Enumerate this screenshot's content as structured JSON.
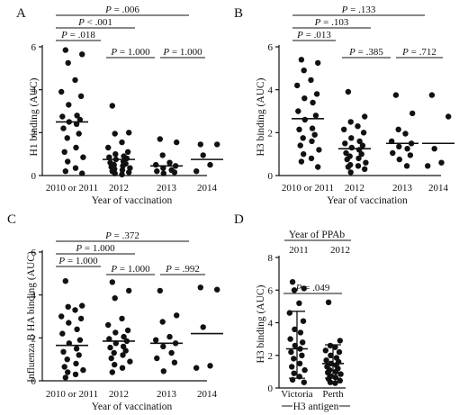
{
  "chart_data": [
    {
      "panel": "A",
      "type": "scatter",
      "ylabel": "H1 binding (AUC)",
      "xlabel": "Year of vaccination",
      "categories": [
        "2010 or 2011",
        "2012",
        "2013",
        "2014"
      ],
      "ylim": [
        0,
        6
      ],
      "yticks": [
        0,
        2,
        4,
        6
      ],
      "points": [
        [
          5.85,
          5.65,
          5.25,
          4.45,
          3.9,
          3.7,
          3.3,
          2.8,
          2.75,
          2.6,
          2.5,
          2.4,
          2.2,
          1.95,
          1.75,
          1.3,
          1.1,
          0.85,
          0.65,
          0.35,
          0.2,
          0.1
        ],
        [
          3.25,
          2.0,
          1.95,
          1.55,
          1.3,
          1.1,
          1.0,
          0.9,
          0.85,
          0.8,
          0.75,
          0.65,
          0.6,
          0.55,
          0.5,
          0.45,
          0.4,
          0.35,
          0.3,
          0.25,
          0.2,
          0.15,
          0.1,
          0.05
        ],
        [
          1.7,
          1.55,
          0.95,
          0.6,
          0.5,
          0.45,
          0.35,
          0.25,
          0.2,
          0.15,
          0.1
        ],
        [
          1.45,
          1.45,
          0.95,
          0.5,
          0.2
        ]
      ],
      "medians": [
        2.5,
        0.75,
        0.45,
        0.75
      ],
      "comparisons": [
        {
          "label": "P = .006",
          "from": 0,
          "to": 2
        },
        {
          "label": "P < .001",
          "from": 0,
          "to": 1
        },
        {
          "label": "P = .018",
          "from": 0,
          "to": 1
        },
        {
          "label": "P = 1.000",
          "from": 1,
          "to": 2
        },
        {
          "label": "P = 1.000",
          "from": 2,
          "to": 3
        }
      ]
    },
    {
      "panel": "B",
      "type": "scatter",
      "ylabel": "H3 binding (AUC)",
      "xlabel": "Year of vaccination",
      "categories": [
        "2010 or 2011",
        "2012",
        "2013",
        "2014"
      ],
      "ylim": [
        0,
        6
      ],
      "yticks": [
        0,
        2,
        4,
        6
      ],
      "points": [
        [
          5.4,
          5.25,
          4.9,
          4.45,
          4.2,
          3.8,
          3.6,
          3.4,
          3.0,
          2.8,
          2.6,
          2.2,
          2.15,
          1.9,
          1.75,
          1.6,
          1.4,
          1.2,
          1.0,
          0.8,
          0.65,
          0.4
        ],
        [
          3.9,
          2.75,
          2.5,
          2.3,
          2.15,
          2.0,
          1.75,
          1.6,
          1.5,
          1.4,
          1.3,
          1.2,
          1.05,
          1.0,
          0.9,
          0.8,
          0.75,
          0.6,
          0.5,
          0.45,
          0.4,
          0.3,
          0.15
        ],
        [
          3.75,
          2.9,
          2.15,
          1.95,
          1.6,
          1.5,
          1.35,
          1.25,
          1.05,
          0.95,
          0.75,
          0.45
        ],
        [
          3.75,
          2.75,
          1.25,
          0.6,
          0.45
        ]
      ],
      "medians": [
        2.65,
        1.25,
        1.5,
        1.5
      ],
      "comparisons": [
        {
          "label": "P = .133",
          "from": 0,
          "to": 2
        },
        {
          "label": "P = .103",
          "from": 0,
          "to": 1
        },
        {
          "label": "P = .013",
          "from": 0,
          "to": 1
        },
        {
          "label": "P = .385",
          "from": 1,
          "to": 2
        },
        {
          "label": "P = .712",
          "from": 2,
          "to": 3
        }
      ]
    },
    {
      "panel": "C",
      "type": "scatter",
      "ylabel": "Influenza B HA binding (AUC)",
      "xlabel": "Year of vaccination",
      "categories": [
        "2010 or 2011",
        "2012",
        "2013",
        "2014"
      ],
      "ylim": [
        0,
        6
      ],
      "yticks": [
        0,
        2,
        4,
        6
      ],
      "points": [
        [
          4.65,
          3.5,
          3.45,
          3.3,
          3.0,
          2.9,
          2.7,
          2.4,
          2.2,
          1.9,
          1.75,
          1.5,
          1.35,
          1.2,
          1.0,
          0.8,
          0.65,
          0.5,
          0.4,
          0.3,
          0.15
        ],
        [
          4.6,
          4.2,
          3.85,
          2.9,
          2.6,
          2.35,
          2.25,
          2.05,
          1.95,
          1.85,
          1.75,
          1.6,
          1.55,
          1.4,
          1.3,
          1.2,
          1.05,
          0.9,
          0.75,
          0.6,
          0.4
        ],
        [
          4.2,
          3.05,
          2.75,
          2.05,
          1.9,
          1.75,
          1.6,
          1.3,
          1.05,
          0.85,
          0.45
        ],
        [
          4.35,
          4.25,
          2.5,
          0.7,
          0.6
        ]
      ],
      "medians": [
        1.65,
        1.85,
        1.75,
        2.2
      ],
      "comparisons": [
        {
          "label": "P = .372",
          "from": 0,
          "to": 2
        },
        {
          "label": "P = 1.000",
          "from": 0,
          "to": 1
        },
        {
          "label": "P = 1.000",
          "from": 0,
          "to": 1
        },
        {
          "label": "P = 1.000",
          "from": 1,
          "to": 2
        },
        {
          "label": "P = .992",
          "from": 2,
          "to": 3
        }
      ]
    },
    {
      "panel": "D",
      "type": "scatter",
      "ylabel": "H3 binding (AUC)",
      "header": "Year of PPAb",
      "years": [
        "2011",
        "2012"
      ],
      "categories": [
        "Victoria",
        "Perth"
      ],
      "group_label": "H3 antigen",
      "ylim": [
        0,
        8
      ],
      "yticks": [
        0,
        2,
        4,
        6,
        8
      ],
      "points": [
        [
          6.5,
          6.1,
          6.0,
          5.2,
          4.6,
          4.1,
          3.6,
          3.4,
          3.0,
          2.8,
          2.6,
          2.4,
          2.2,
          2.0,
          1.8,
          1.5,
          1.3,
          1.1,
          0.9,
          0.7,
          0.5,
          0.35
        ],
        [
          5.25,
          2.9,
          2.6,
          2.5,
          2.3,
          2.2,
          2.0,
          1.85,
          1.7,
          1.6,
          1.5,
          1.4,
          1.3,
          1.2,
          1.1,
          1.0,
          0.95,
          0.85,
          0.75,
          0.65,
          0.55,
          0.45,
          0.35,
          0.3
        ]
      ],
      "medians": [
        2.4,
        1.5
      ],
      "error_low": [
        0.6,
        0.6
      ],
      "error_high": [
        4.7,
        2.65
      ],
      "comparisons": [
        {
          "label": "P = .049",
          "from": 0,
          "to": 1
        }
      ]
    }
  ]
}
